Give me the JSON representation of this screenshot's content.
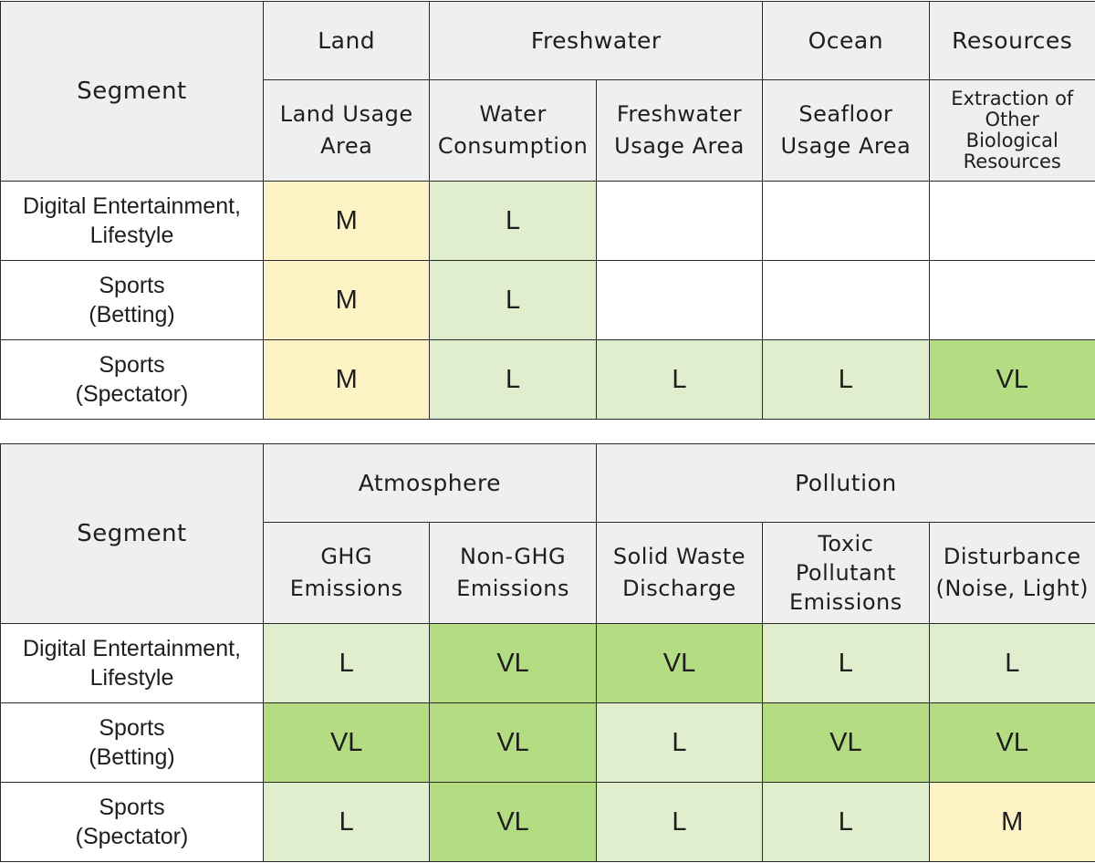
{
  "tables": [
    {
      "segment_header": "Segment",
      "groups": [
        {
          "label": "Land",
          "span": 1
        },
        {
          "label": "Freshwater",
          "span": 2
        },
        {
          "label": "Ocean",
          "span": 1
        },
        {
          "label": "Resources",
          "span": 1
        }
      ],
      "columns": [
        {
          "label": [
            "Land Usage",
            "Area"
          ],
          "style": "normal"
        },
        {
          "label": [
            "Water",
            "Consumption"
          ],
          "style": "normal"
        },
        {
          "label": [
            "Freshwater",
            "Usage Area"
          ],
          "style": "normal"
        },
        {
          "label": [
            "Seafloor",
            "Usage Area"
          ],
          "style": "normal"
        },
        {
          "label": [
            "Extraction of",
            "Other",
            "Biological",
            "Resources"
          ],
          "style": "small"
        }
      ],
      "rows": [
        {
          "segment": [
            "Digital Entertainment,",
            "Lifestyle"
          ],
          "values": [
            "M",
            "L",
            "",
            "",
            ""
          ]
        },
        {
          "segment": [
            "Sports",
            "(Betting)"
          ],
          "values": [
            "M",
            "L",
            "",
            "",
            ""
          ]
        },
        {
          "segment": [
            "Sports",
            "(Spectator)"
          ],
          "values": [
            "M",
            "L",
            "L",
            "L",
            "VL"
          ]
        }
      ]
    },
    {
      "segment_header": "Segment",
      "groups": [
        {
          "label": "Atmosphere",
          "span": 2
        },
        {
          "label": "Pollution",
          "span": 3
        }
      ],
      "columns": [
        {
          "label": [
            "GHG",
            "Emissions"
          ],
          "style": "normal"
        },
        {
          "label": [
            "Non-GHG",
            "Emissions"
          ],
          "style": "normal"
        },
        {
          "label": [
            "Solid Waste",
            "Discharge"
          ],
          "style": "normal"
        },
        {
          "label": [
            "Toxic",
            "Pollutant",
            "Emissions"
          ],
          "style": "medium"
        },
        {
          "label": [
            "Disturbance",
            "(Noise, Light)"
          ],
          "style": "normal"
        }
      ],
      "rows": [
        {
          "segment": [
            "Digital Entertainment,",
            "Lifestyle"
          ],
          "values": [
            "L",
            "VL",
            "VL",
            "L",
            "L"
          ]
        },
        {
          "segment": [
            "Sports",
            "(Betting)"
          ],
          "values": [
            "VL",
            "VL",
            "L",
            "VL",
            "VL"
          ]
        },
        {
          "segment": [
            "Sports",
            "(Spectator)"
          ],
          "values": [
            "L",
            "VL",
            "L",
            "L",
            "M"
          ]
        }
      ]
    }
  ],
  "level_colors": {
    "M": "#fdf3c5",
    "L": "#e1eecd",
    "VL": "#b4dc82",
    "none": "#ffffff"
  }
}
